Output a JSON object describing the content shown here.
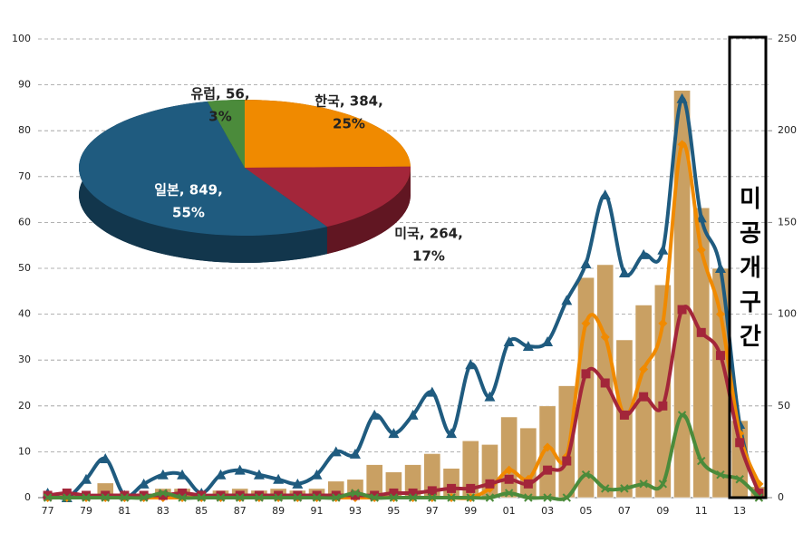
{
  "chart_data": [
    {
      "type": "combo",
      "categories": [
        "77",
        null,
        "79",
        null,
        "81",
        null,
        "83",
        null,
        "85",
        null,
        "87",
        null,
        "89",
        null,
        "91",
        null,
        "93",
        null,
        "95",
        null,
        "97",
        null,
        "99",
        null,
        "01",
        null,
        "03",
        null,
        "05",
        null,
        "07",
        null,
        "09",
        null,
        "11",
        null,
        "13",
        null
      ],
      "bars": {
        "color": "#c9a063",
        "axis": "y2",
        "values": [
          0,
          2,
          0,
          8,
          1,
          2,
          5,
          5,
          2,
          4,
          5,
          4,
          5,
          4,
          5,
          9,
          10,
          18,
          14,
          18,
          24,
          16,
          31,
          29,
          44,
          38,
          50,
          61,
          120,
          127,
          86,
          105,
          116,
          222,
          158,
          125,
          42,
          6
        ]
      },
      "series": [
        {
          "color": "#1f5b7f",
          "marker": "triangle",
          "values": [
            1,
            0,
            4,
            8.5,
            0.5,
            3,
            5,
            5,
            1,
            5,
            6,
            5,
            4,
            3,
            5,
            10,
            9.5,
            18,
            14,
            18,
            23,
            14,
            29,
            22,
            34,
            33,
            34,
            43,
            51,
            66,
            49,
            53,
            54,
            87,
            61,
            50,
            16,
            1
          ]
        },
        {
          "color": "#f08a00",
          "marker": "diamond",
          "values": [
            0,
            0,
            0,
            0,
            0,
            0,
            0,
            0,
            0,
            0,
            0,
            0,
            0,
            0,
            0,
            0,
            0,
            0,
            0,
            0,
            0,
            0,
            0,
            2,
            6,
            4,
            11,
            9,
            38,
            35,
            18,
            28,
            38,
            77,
            54,
            40,
            14,
            3
          ]
        },
        {
          "color": "#a3263a",
          "marker": "square",
          "values": [
            0.5,
            1,
            0.5,
            0.5,
            0.5,
            0.5,
            0.5,
            1,
            0.5,
            0.5,
            0.5,
            0.5,
            0.5,
            0.5,
            0.5,
            0.5,
            0.5,
            0.5,
            1,
            1,
            1.5,
            2,
            2,
            3,
            4,
            3,
            6,
            8,
            27,
            25,
            18,
            22,
            20,
            41,
            36,
            31,
            12,
            1
          ]
        },
        {
          "color": "#4b8b3b",
          "marker": "x",
          "values": [
            0,
            0,
            0,
            0,
            0,
            0,
            1,
            0,
            0,
            0,
            0,
            0,
            0,
            0,
            0,
            0,
            1,
            0,
            0,
            0,
            0,
            0,
            0,
            0,
            1,
            0,
            0,
            0,
            5,
            2,
            2,
            3,
            3,
            18,
            8,
            5,
            4,
            0
          ]
        }
      ],
      "ylim": [
        0,
        100
      ],
      "yticks": [
        0,
        10,
        20,
        30,
        40,
        50,
        60,
        70,
        80,
        90,
        100
      ],
      "y2lim": [
        0,
        250
      ],
      "y2ticks": [
        0,
        50,
        100,
        150,
        200,
        250
      ],
      "grid": true,
      "annotation": "미공개구간"
    },
    {
      "type": "pie",
      "labels": [
        "한국, 384,",
        "미국, 264,",
        "일본, 849,",
        "유럽, 56,"
      ],
      "values": [
        384,
        264,
        849,
        56
      ],
      "percent_labels": [
        "25%",
        "17%",
        "55%",
        "3%"
      ],
      "colors": [
        "#f08a00",
        "#a3263a",
        "#1f5b7f",
        "#4b8b3b"
      ]
    }
  ]
}
